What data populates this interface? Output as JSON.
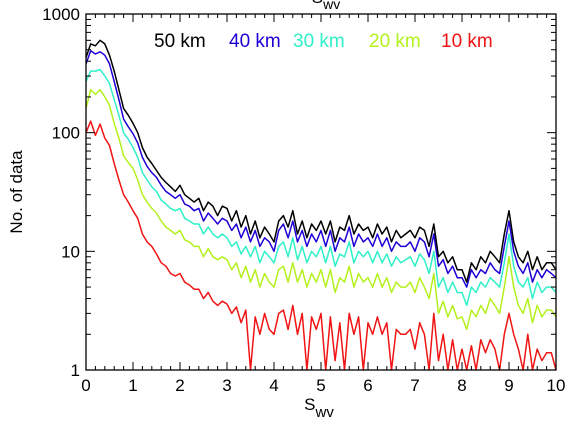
{
  "chart_data": {
    "type": "line",
    "title": "S",
    "title_subscript": "wv",
    "xlabel": "S",
    "xlabel_subscript": "wv",
    "ylabel": "No. of data",
    "xlim": [
      0,
      10
    ],
    "ylim": [
      1,
      1000
    ],
    "y_scale": "log",
    "grid": false,
    "legend_placement": "top-center",
    "x_ticks": [
      0,
      1,
      2,
      3,
      4,
      5,
      6,
      7,
      8,
      9,
      10
    ],
    "y_ticks": [
      1,
      10,
      100,
      1000
    ],
    "x": [
      0.0,
      0.1,
      0.2,
      0.3,
      0.4,
      0.5,
      0.6,
      0.7,
      0.8,
      0.9,
      1.0,
      1.1,
      1.2,
      1.3,
      1.4,
      1.5,
      1.6,
      1.7,
      1.8,
      1.9,
      2.0,
      2.1,
      2.2,
      2.3,
      2.4,
      2.5,
      2.6,
      2.7,
      2.8,
      2.9,
      3.0,
      3.1,
      3.2,
      3.3,
      3.4,
      3.5,
      3.6,
      3.7,
      3.8,
      3.9,
      4.0,
      4.1,
      4.2,
      4.3,
      4.4,
      4.5,
      4.6,
      4.7,
      4.8,
      4.9,
      5.0,
      5.1,
      5.2,
      5.3,
      5.4,
      5.5,
      5.6,
      5.7,
      5.8,
      5.9,
      6.0,
      6.1,
      6.2,
      6.3,
      6.4,
      6.5,
      6.6,
      6.7,
      6.8,
      6.9,
      7.0,
      7.1,
      7.2,
      7.3,
      7.4,
      7.5,
      7.6,
      7.7,
      7.8,
      7.9,
      8.0,
      8.1,
      8.2,
      8.3,
      8.4,
      8.5,
      8.6,
      8.7,
      8.8,
      8.9,
      9.0,
      9.1,
      9.2,
      9.3,
      9.4,
      9.5,
      9.6,
      9.7,
      9.8,
      9.9,
      10.0
    ],
    "series": [
      {
        "name": "50 km",
        "color": "#000000",
        "values": [
          430,
          560,
          540,
          600,
          560,
          450,
          330,
          230,
          160,
          140,
          120,
          100,
          75,
          62,
          55,
          48,
          42,
          38,
          35,
          32,
          36,
          30,
          28,
          26,
          28,
          22,
          26,
          24,
          20,
          24,
          23,
          18,
          22,
          16,
          20,
          14,
          18,
          13,
          16,
          14,
          12,
          18,
          20,
          16,
          22,
          14,
          18,
          13,
          17,
          15,
          18,
          14,
          18,
          12,
          16,
          15,
          20,
          14,
          17,
          15,
          16,
          13,
          17,
          14,
          16,
          12,
          15,
          13,
          14,
          15,
          13,
          16,
          15,
          11,
          17,
          9,
          10,
          8,
          9,
          7,
          7,
          5.5,
          8,
          7,
          9,
          8,
          10,
          9,
          8,
          14,
          22,
          12,
          9,
          8,
          10,
          7,
          9,
          7,
          8,
          8,
          7
        ]
      },
      {
        "name": "40 km",
        "color": "#1c00d6",
        "values": [
          380,
          490,
          460,
          480,
          450,
          380,
          270,
          190,
          130,
          112,
          98,
          82,
          62,
          52,
          46,
          42,
          36,
          32,
          30,
          28,
          30,
          25,
          24,
          22,
          23,
          18,
          21,
          19,
          17,
          19,
          18,
          15,
          17,
          13,
          16,
          12,
          15,
          11,
          13,
          12,
          10,
          15,
          17,
          13,
          18,
          12,
          15,
          11,
          14,
          12,
          15,
          11,
          15,
          10,
          13,
          12,
          16,
          11,
          14,
          12,
          13,
          11,
          14,
          11,
          13,
          10,
          12,
          11,
          11,
          12,
          10,
          13,
          12,
          9,
          14,
          7.5,
          8.5,
          6.5,
          7.5,
          6,
          6,
          5,
          7,
          6,
          7,
          6.5,
          8,
          7,
          6.5,
          11,
          18,
          10,
          7.5,
          6.5,
          8,
          5.5,
          7,
          6,
          7,
          6.5,
          6
        ]
      },
      {
        "name": "30 km",
        "color": "#2ff0c8",
        "values": [
          270,
          330,
          330,
          340,
          300,
          260,
          190,
          140,
          100,
          88,
          75,
          62,
          46,
          40,
          35,
          32,
          27,
          25,
          23,
          22,
          23,
          19,
          18,
          17,
          17,
          14,
          16,
          14,
          13,
          14,
          13,
          11,
          12,
          9.5,
          11,
          9,
          11,
          8,
          10,
          9,
          8,
          11,
          12,
          9,
          13,
          8.5,
          11,
          8,
          10,
          9,
          11,
          8,
          11,
          7.5,
          9.5,
          9,
          12,
          8,
          10,
          9,
          10,
          8,
          10,
          8,
          9.5,
          7.5,
          9,
          8,
          8.5,
          9,
          7.5,
          9.5,
          8.5,
          6.5,
          10,
          5,
          6,
          4.5,
          5.5,
          4.5,
          4.5,
          3.5,
          5,
          4.5,
          5.5,
          5,
          6,
          5.5,
          5,
          8,
          14,
          7.5,
          5.5,
          5,
          6,
          4,
          5.5,
          4.5,
          5,
          5,
          4.5
        ]
      },
      {
        "name": "20 km",
        "color": "#b4f01c",
        "values": [
          160,
          230,
          210,
          230,
          200,
          170,
          120,
          90,
          64,
          56,
          50,
          40,
          30,
          26,
          23,
          21,
          18,
          16,
          15,
          14,
          15,
          12.5,
          12,
          11,
          11,
          9,
          10.5,
          9,
          8.5,
          9,
          8.5,
          7,
          8,
          6,
          7.5,
          5.5,
          7,
          5,
          6.5,
          5.5,
          5,
          7,
          7.5,
          5.5,
          8,
          5.5,
          7,
          5,
          6.5,
          5.5,
          7,
          5,
          7,
          4.5,
          6,
          5.5,
          7.5,
          5,
          6.5,
          5.5,
          6,
          5,
          6.5,
          5,
          6,
          4.5,
          5.5,
          5,
          5,
          5.5,
          4.5,
          6,
          5,
          4,
          6.5,
          3,
          3.8,
          2.8,
          3.5,
          2.7,
          2.8,
          2.2,
          3.2,
          2.8,
          3.5,
          3,
          4,
          3.5,
          3,
          5,
          9,
          5,
          3.5,
          3,
          4,
          2.5,
          3.5,
          2.8,
          3.2,
          3.2,
          2.8
        ]
      },
      {
        "name": "10 km",
        "color": "#f01414",
        "values": [
          100,
          125,
          95,
          118,
          90,
          78,
          55,
          40,
          30,
          26,
          22,
          19,
          14,
          12,
          11,
          9.5,
          8,
          7.5,
          6.5,
          6.2,
          6.5,
          5.5,
          5.2,
          4.8,
          4.8,
          4,
          4.5,
          3.8,
          3.5,
          3.8,
          3.6,
          3,
          3.4,
          2.5,
          3.2,
          1,
          2.8,
          2,
          3,
          2.2,
          2,
          3,
          3.2,
          2.2,
          3.5,
          2,
          3,
          1,
          2.8,
          2.2,
          3,
          1,
          2.8,
          1.2,
          2.5,
          1,
          3,
          2,
          2.8,
          1,
          2.5,
          2,
          2.8,
          2,
          2.5,
          1,
          2.2,
          2,
          2,
          2.2,
          1.5,
          2.5,
          2,
          1,
          3,
          1.2,
          2,
          1,
          1.8,
          1,
          1.5,
          1,
          1.6,
          1,
          1.8,
          1.4,
          1.8,
          1.5,
          1,
          2,
          3,
          2,
          1.5,
          1,
          2,
          1,
          1.5,
          1.2,
          1.4,
          1.4,
          1
        ]
      }
    ]
  }
}
